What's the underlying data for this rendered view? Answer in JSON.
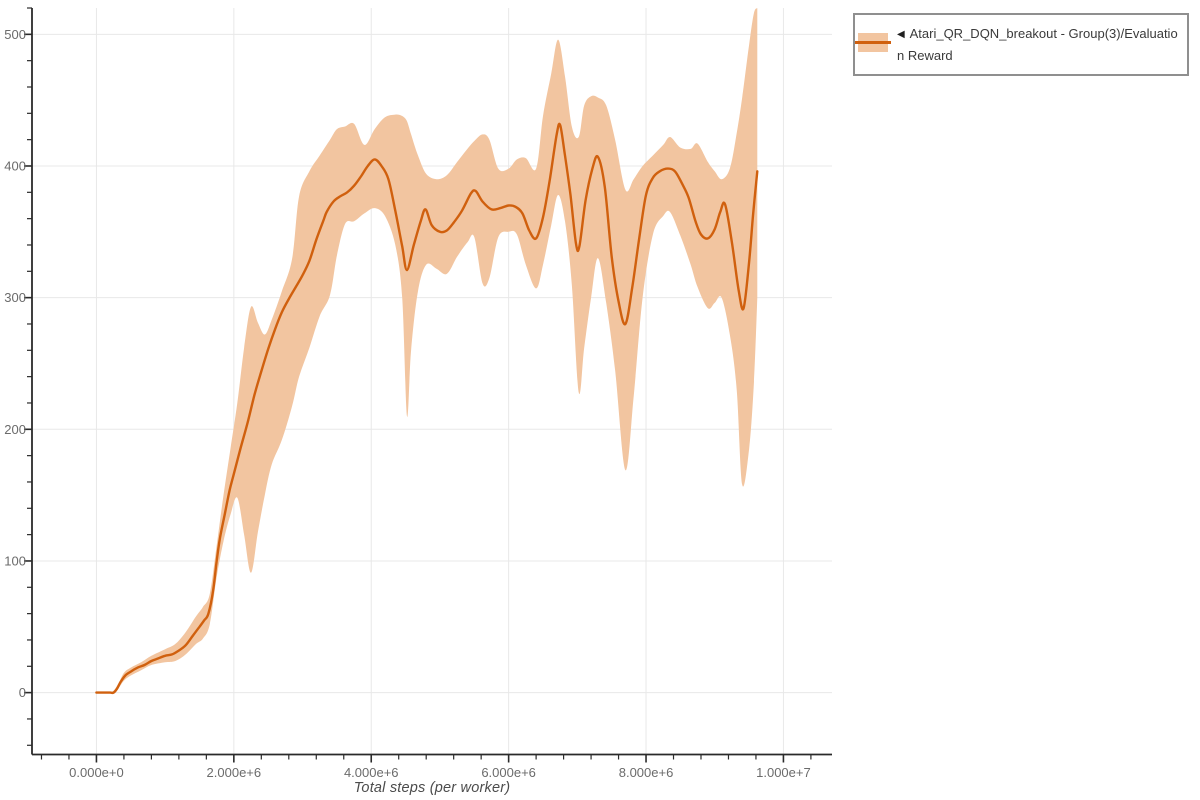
{
  "legend": {
    "arrow": "◀",
    "label": "Atari_QR_DQN_breakout - Group(3)/Evaluation Reward"
  },
  "colors": {
    "line": "#d0600e",
    "band": "#f2c5a0",
    "grid": "#e8e8e8",
    "spine": "#2a2a2a",
    "tick_text": "#6b6b6b",
    "legend_border": "#8f8f8f",
    "background": "#ffffff"
  },
  "chart_data": {
    "type": "line",
    "title": "",
    "xlabel": "Total steps (per worker)",
    "ylabel": "",
    "grid": true,
    "legend_position": "top-right-outside",
    "xlim": [
      -938000,
      10707000
    ],
    "ylim": [
      -47,
      520
    ],
    "x_ticks": {
      "values": [
        0,
        2000000.0,
        4000000.0,
        6000000.0,
        8000000.0,
        10000000.0
      ],
      "labels": [
        "0.000e+0",
        "2.000e+6",
        "4.000e+6",
        "6.000e+6",
        "8.000e+6",
        "1.000e+7"
      ],
      "minor_start": -800000.0,
      "minor_end": 10400000.0,
      "minor_step": 400000.0
    },
    "y_ticks": {
      "values": [
        0,
        100,
        200,
        300,
        400,
        500
      ],
      "labels": [
        "0",
        "100",
        "200",
        "300",
        "400",
        "500"
      ],
      "minor_start": -40,
      "minor_end": 520,
      "minor_step": 20
    },
    "series": [
      {
        "name": "Atari_QR_DQN_breakout - Group(3)/Evaluation Reward",
        "color": "#d0600e",
        "band_color": "#f2c5a0",
        "x": [
          0,
          100000.0,
          200000.0,
          250000.0,
          300000.0,
          350000.0,
          420000.0,
          500000.0,
          600000.0,
          700000.0,
          800000.0,
          900000.0,
          1000000.0,
          1100000.0,
          1200000.0,
          1300000.0,
          1400000.0,
          1500000.0,
          1570000.0,
          1630000.0,
          1700000.0,
          1750000.0,
          1800000.0,
          1870000.0,
          1940000.0,
          2000000.0,
          2100000.0,
          2200000.0,
          2300000.0,
          2400000.0,
          2500000.0,
          2600000.0,
          2700000.0,
          2800000.0,
          2900000.0,
          3000000.0,
          3100000.0,
          3200000.0,
          3300000.0,
          3350000.0,
          3450000.0,
          3550000.0,
          3650000.0,
          3750000.0,
          3850000.0,
          3950000.0,
          4050000.0,
          4150000.0,
          4250000.0,
          4350000.0,
          4450000.0,
          4520000.0,
          4620000.0,
          4720000.0,
          4790000.0,
          4880000.0,
          5000000.0,
          5100000.0,
          5200000.0,
          5320000.0,
          5450000.0,
          5520000.0,
          5620000.0,
          5750000.0,
          5880000.0,
          6000000.0,
          6100000.0,
          6200000.0,
          6300000.0,
          6400000.0,
          6500000.0,
          6600000.0,
          6700000.0,
          6750000.0,
          6820000.0,
          6900000.0,
          6980000.0,
          7030000.0,
          7120000.0,
          7220000.0,
          7300000.0,
          7400000.0,
          7500000.0,
          7600000.0,
          7700000.0,
          7800000.0,
          7900000.0,
          8000000.0,
          8100000.0,
          8200000.0,
          8320000.0,
          8420000.0,
          8520000.0,
          8620000.0,
          8720000.0,
          8800000.0,
          8900000.0,
          9000000.0,
          9080000.0,
          9150000.0,
          9250000.0,
          9350000.0,
          9420000.0,
          9500000.0,
          9560000.0,
          9620000.0
        ],
        "y": [
          0,
          0,
          0,
          0,
          3,
          8,
          13,
          16,
          19,
          21,
          24,
          26,
          28,
          29,
          32,
          36,
          43,
          50,
          55,
          60,
          78,
          100,
          118,
          136,
          154,
          166,
          186,
          205,
          226,
          244,
          261,
          276,
          289,
          299,
          308,
          317,
          328,
          344,
          358,
          365,
          373,
          377,
          380,
          385,
          392,
          400,
          405,
          400,
          390,
          366,
          339,
          321,
          340,
          358,
          367,
          355,
          350,
          351,
          357,
          366,
          379,
          381,
          373,
          367,
          368,
          370,
          369,
          364,
          351,
          345,
          361,
          390,
          424,
          431,
          408,
          378,
          341,
          339,
          374,
          398,
          407,
          384,
          331,
          297,
          280,
          308,
          345,
          378,
          391,
          396,
          398,
          396,
          387,
          376,
          358,
          348,
          345,
          352,
          365,
          371,
          342,
          305,
          292,
          327,
          364,
          396
        ],
        "band": {
          "x": [
            0,
            200000.0,
            300000.0,
            400000.0,
            500000.0,
            650000.0,
            800000.0,
            1000000.0,
            1150000.0,
            1300000.0,
            1450000.0,
            1550000.0,
            1650000.0,
            1750000.0,
            1850000.0,
            1950000.0,
            2050000.0,
            2150000.0,
            2250000.0,
            2350000.0,
            2450000.0,
            2550000.0,
            2700000.0,
            2850000.0,
            2950000.0,
            3100000.0,
            3250000.0,
            3400000.0,
            3500000.0,
            3620000.0,
            3750000.0,
            3900000.0,
            4050000.0,
            4200000.0,
            4350000.0,
            4450000.0,
            4520000.0,
            4580000.0,
            4680000.0,
            4800000.0,
            4950000.0,
            5100000.0,
            5250000.0,
            5400000.0,
            5500000.0,
            5620000.0,
            5720000.0,
            5850000.0,
            6000000.0,
            6120000.0,
            6250000.0,
            6400000.0,
            6500000.0,
            6620000.0,
            6720000.0,
            6820000.0,
            6920000.0,
            7020000.0,
            7100000.0,
            7200000.0,
            7300000.0,
            7420000.0,
            7550000.0,
            7700000.0,
            7820000.0,
            7950000.0,
            8100000.0,
            8250000.0,
            8350000.0,
            8500000.0,
            8650000.0,
            8750000.0,
            8900000.0,
            9000000.0,
            9100000.0,
            9220000.0,
            9320000.0,
            9400000.0,
            9500000.0,
            9570000.0,
            9620000.0
          ],
          "low": [
            0,
            0,
            2,
            9,
            13,
            17,
            21,
            23,
            24,
            29,
            37,
            41,
            52,
            88,
            115,
            135,
            148,
            120,
            91,
            122,
            150,
            173,
            192,
            218,
            240,
            262,
            286,
            302,
            332,
            356,
            358,
            364,
            368,
            362,
            340,
            300,
            210,
            260,
            305,
            325,
            322,
            318,
            331,
            342,
            346,
            311,
            315,
            346,
            350,
            348,
            325,
            307,
            325,
            355,
            378,
            358,
            310,
            228,
            262,
            300,
            330,
            296,
            245,
            169,
            225,
            300,
            348,
            362,
            365,
            347,
            325,
            308,
            292,
            296,
            300,
            272,
            230,
            158,
            185,
            235,
            300
          ],
          "high": [
            0,
            0,
            5,
            15,
            19,
            23,
            28,
            33,
            37,
            46,
            58,
            65,
            75,
            112,
            150,
            185,
            220,
            262,
            293,
            281,
            272,
            283,
            305,
            330,
            377,
            396,
            408,
            420,
            428,
            430,
            432,
            416,
            428,
            437,
            439,
            438,
            434,
            424,
            408,
            394,
            390,
            393,
            403,
            413,
            419,
            424,
            420,
            398,
            398,
            405,
            406,
            398,
            438,
            470,
            496,
            468,
            430,
            422,
            446,
            453,
            452,
            446,
            420,
            382,
            390,
            400,
            408,
            416,
            422,
            414,
            413,
            417,
            403,
            396,
            390,
            398,
            425,
            452,
            492,
            516,
            520
          ]
        }
      }
    ]
  }
}
